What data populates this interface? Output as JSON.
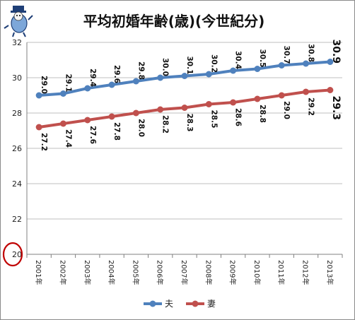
{
  "chart_data": {
    "type": "line",
    "title": "平均初婚年齢(歳)(今世紀分)",
    "categories": [
      "2001年",
      "2002年",
      "2003年",
      "2004年",
      "2005年",
      "2006年",
      "2007年",
      "2008年",
      "2009年",
      "2010年",
      "2011年",
      "2012年",
      "2013年"
    ],
    "series": [
      {
        "name": "夫",
        "color": "#4f81bd",
        "values": [
          29.0,
          29.1,
          29.4,
          29.6,
          29.8,
          30.0,
          30.1,
          30.2,
          30.4,
          30.5,
          30.7,
          30.8,
          30.9
        ]
      },
      {
        "name": "妻",
        "color": "#c0504d",
        "values": [
          27.2,
          27.4,
          27.6,
          27.8,
          28.0,
          28.2,
          28.3,
          28.5,
          28.6,
          28.8,
          29.0,
          29.2,
          29.3
        ]
      }
    ],
    "ylim": [
      20,
      32
    ],
    "yticks": [
      20,
      22,
      24,
      26,
      28,
      30,
      32
    ],
    "grid": "horizontal",
    "legend": "bottom",
    "annotation": {
      "circled_tick": "20",
      "circle_color": "#c00000"
    }
  }
}
